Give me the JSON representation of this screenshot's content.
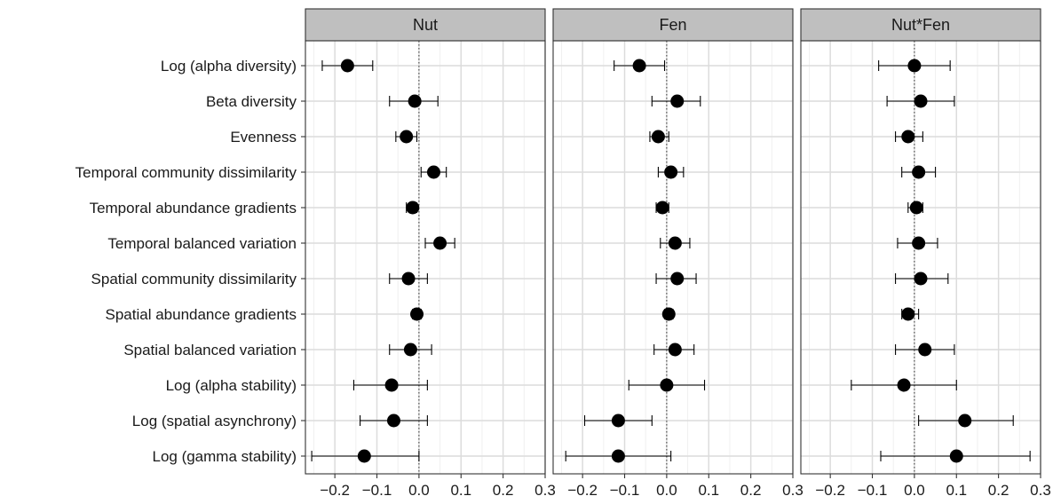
{
  "chart_data": {
    "type": "scatter",
    "subtype": "coefficient-plot-with-error-bars",
    "title": "",
    "xlabel": "",
    "ylabel": "",
    "xlim": [
      -0.27,
      0.3
    ],
    "x_ticks": [
      -0.2,
      -0.1,
      0.0,
      0.1,
      0.2,
      0.3
    ],
    "x_tick_labels": [
      "−0.2",
      "−0.1",
      "0.0",
      "0.1",
      "0.2",
      "0.3"
    ],
    "reference_line_x": 0,
    "grid": true,
    "legend": "none",
    "marker_color": "#000000",
    "strip_color": "#bfbfbf",
    "categories": [
      "Log (alpha diversity)",
      "Beta diversity",
      "Evenness",
      "Temporal community dissimilarity",
      "Temporal abundance gradients",
      "Temporal balanced variation",
      "Spatial community dissimilarity",
      "Spatial abundance gradients",
      "Spatial balanced variation",
      "Log (alpha stability)",
      "Log (spatial asynchrony)",
      "Log (gamma stability)"
    ],
    "panels": [
      {
        "name": "Nut",
        "estimates": [
          -0.17,
          -0.01,
          -0.03,
          0.035,
          -0.015,
          0.05,
          -0.025,
          -0.005,
          -0.02,
          -0.065,
          -0.06,
          -0.13
        ],
        "lower": [
          -0.23,
          -0.07,
          -0.055,
          0.005,
          -0.03,
          0.015,
          -0.07,
          -0.015,
          -0.07,
          -0.155,
          -0.14,
          -0.255
        ],
        "upper": [
          -0.11,
          0.045,
          -0.005,
          0.065,
          -0.005,
          0.085,
          0.02,
          0.005,
          0.03,
          0.02,
          0.02,
          0.0
        ]
      },
      {
        "name": "Fen",
        "estimates": [
          -0.065,
          0.025,
          -0.02,
          0.01,
          -0.01,
          0.02,
          0.025,
          0.005,
          0.02,
          0.0,
          -0.115,
          -0.115
        ],
        "lower": [
          -0.125,
          -0.035,
          -0.04,
          -0.02,
          -0.025,
          -0.015,
          -0.025,
          -0.005,
          -0.03,
          -0.09,
          -0.195,
          -0.24
        ],
        "upper": [
          -0.005,
          0.08,
          0.005,
          0.04,
          0.005,
          0.055,
          0.07,
          0.015,
          0.065,
          0.09,
          -0.035,
          0.01
        ]
      },
      {
        "name": "Nut*Fen",
        "estimates": [
          0.0,
          0.015,
          -0.015,
          0.01,
          0.005,
          0.01,
          0.015,
          -0.015,
          0.025,
          -0.025,
          0.12,
          0.1
        ],
        "lower": [
          -0.085,
          -0.065,
          -0.045,
          -0.03,
          -0.015,
          -0.04,
          -0.045,
          -0.03,
          -0.045,
          -0.15,
          0.01,
          -0.08
        ],
        "upper": [
          0.085,
          0.095,
          0.02,
          0.05,
          0.02,
          0.055,
          0.08,
          0.01,
          0.095,
          0.1,
          0.235,
          0.275
        ]
      }
    ]
  }
}
